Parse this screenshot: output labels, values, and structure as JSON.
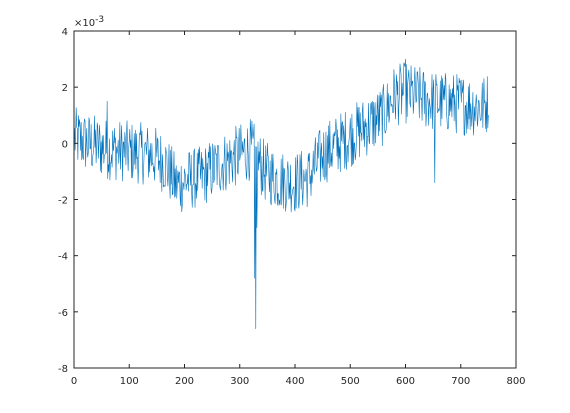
{
  "figure": {
    "background": "#ffffff",
    "axes_color": "#262626"
  },
  "chart_data": {
    "type": "line",
    "title": "",
    "xlabel": "",
    "ylabel": "",
    "xlim": [
      0,
      800
    ],
    "ylim": [
      -0.008,
      0.004
    ],
    "x_ticks": [
      0,
      100,
      200,
      300,
      400,
      500,
      600,
      700,
      800
    ],
    "x_tick_labels": [
      "0",
      "100",
      "200",
      "300",
      "400",
      "500",
      "600",
      "700",
      "800"
    ],
    "y_ticks": [
      -0.008,
      -0.006,
      -0.004,
      -0.002,
      0,
      0.002,
      0.004
    ],
    "y_tick_labels": [
      "-8",
      "-6",
      "-4",
      "-2",
      "0",
      "2",
      "4"
    ],
    "y_exponent_label": "×10^-3",
    "y_exponent_parts": {
      "base": "×10",
      "exp": "-3"
    },
    "grid": false,
    "box": true,
    "series": [
      {
        "color": "#0072BD",
        "x_start": 1,
        "x_end": 750,
        "trend_knots": [
          [
            1,
            0.0002
          ],
          [
            25,
            0.0
          ],
          [
            60,
            -0.0002
          ],
          [
            100,
            -0.0003
          ],
          [
            140,
            -0.0004
          ],
          [
            165,
            -0.0007
          ],
          [
            185,
            -0.0015
          ],
          [
            205,
            -0.0013
          ],
          [
            230,
            -0.0012
          ],
          [
            260,
            -0.0008
          ],
          [
            300,
            -0.0004
          ],
          [
            320,
            -0.0002
          ],
          [
            330,
            -0.0005
          ],
          [
            345,
            -0.001
          ],
          [
            370,
            -0.0013
          ],
          [
            400,
            -0.0014
          ],
          [
            425,
            -0.0012
          ],
          [
            450,
            -0.0004
          ],
          [
            480,
            0.0
          ],
          [
            520,
            0.0005
          ],
          [
            560,
            0.001
          ],
          [
            580,
            0.0017
          ],
          [
            600,
            0.0018
          ],
          [
            650,
            0.0015
          ],
          [
            700,
            0.0014
          ],
          [
            740,
            0.0013
          ],
          [
            750,
            0.0015
          ]
        ],
        "noise_amplitude": 0.0013,
        "spikes": [
          {
            "x": 329,
            "y": -0.0066
          },
          {
            "x": 327,
            "y": -0.0048
          },
          {
            "x": 331,
            "y": -0.003
          },
          {
            "x": 653,
            "y": -0.0014
          },
          {
            "x": 60,
            "y": 0.0015
          },
          {
            "x": 600,
            "y": 0.003
          }
        ]
      }
    ]
  }
}
